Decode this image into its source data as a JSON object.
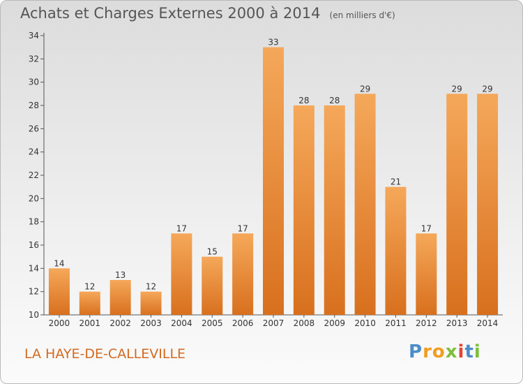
{
  "header": {
    "title": "Achats et Charges Externes 2000 à 2014",
    "unit": "(en milliers d'€)"
  },
  "footer": {
    "commune": "LA HAYE-DE-CALLEVILLE",
    "logo": "Proxiti"
  },
  "colors": {
    "bar_light": "#f5a85a",
    "bar_dark": "#d8701e",
    "commune_text": "#d2691e"
  },
  "chart_data": {
    "type": "bar",
    "title": "Achats et Charges Externes 2000 à 2014",
    "subtitle": "(en milliers d'€)",
    "categories": [
      "2000",
      "2001",
      "2002",
      "2003",
      "2004",
      "2005",
      "2006",
      "2007",
      "2008",
      "2009",
      "2010",
      "2011",
      "2012",
      "2013",
      "2014"
    ],
    "values": [
      14,
      12,
      13,
      12,
      17,
      15,
      17,
      33,
      28,
      28,
      29,
      21,
      17,
      29,
      29
    ],
    "ylim": [
      10,
      34
    ],
    "yticks": [
      10,
      12,
      14,
      16,
      18,
      20,
      22,
      24,
      26,
      28,
      30,
      32,
      34
    ],
    "xlabel": "",
    "ylabel": "",
    "grid": false,
    "data_labels": true
  }
}
